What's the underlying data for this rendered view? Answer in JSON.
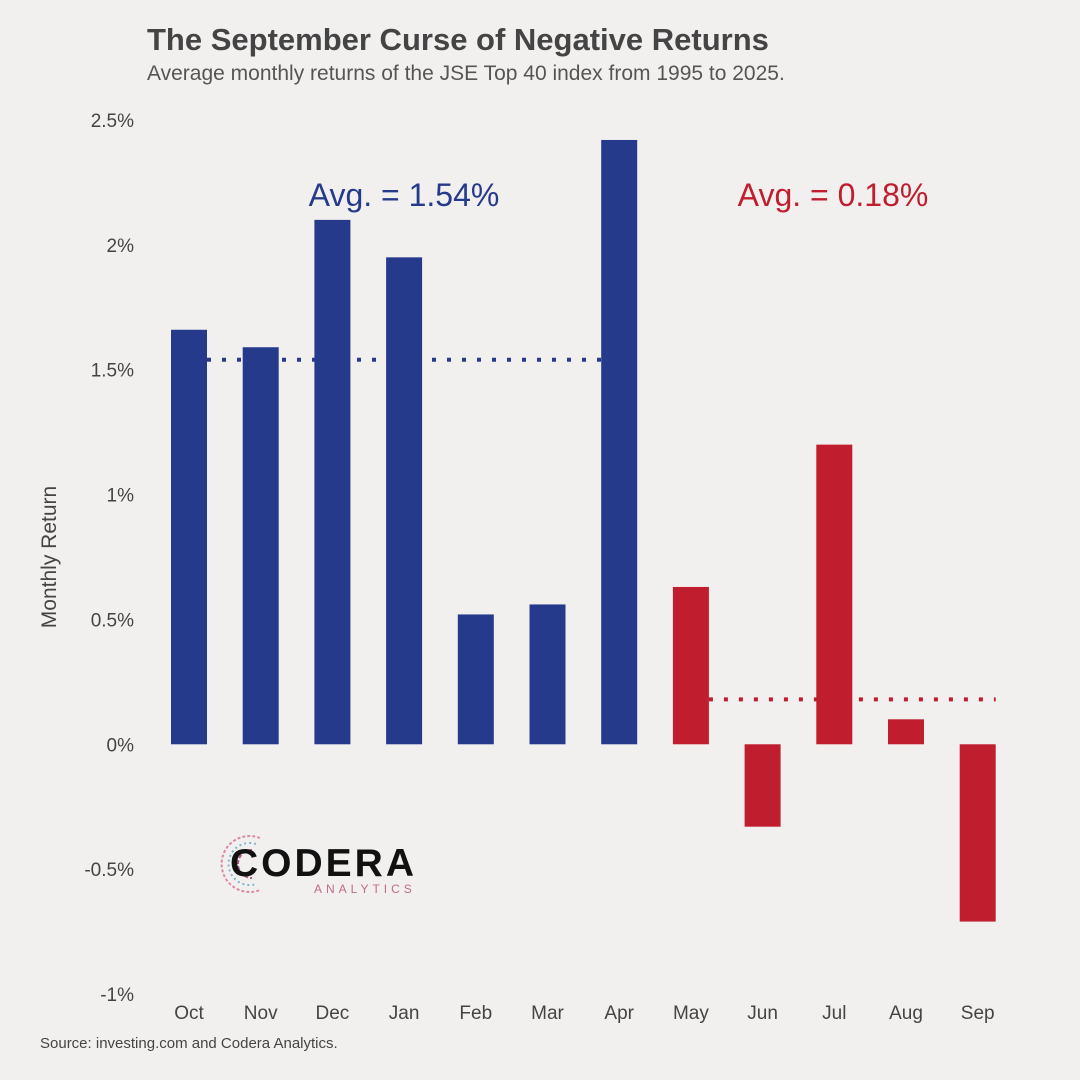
{
  "title": "The September Curse of Negative Returns",
  "subtitle": "Average monthly returns of the JSE Top 40 index from 1995 to 2025.",
  "source": "Source: investing.com and Codera Analytics.",
  "logo": {
    "name": "CODERA",
    "sub": "ANALYTICS"
  },
  "colors": {
    "blue": "#263a8b",
    "red": "#c01d2e",
    "text": "#444444",
    "background": "#f2f0ef"
  },
  "chart_data": {
    "type": "bar",
    "ylabel": "Monthly Return",
    "xlabel": "",
    "categories": [
      "Oct",
      "Nov",
      "Dec",
      "Jan",
      "Feb",
      "Mar",
      "Apr",
      "May",
      "Jun",
      "Jul",
      "Aug",
      "Sep"
    ],
    "values": [
      1.66,
      1.59,
      2.1,
      1.95,
      0.52,
      0.56,
      2.42,
      0.63,
      -0.33,
      1.2,
      0.1,
      -0.71
    ],
    "groups": [
      {
        "label": "Avg. = 1.54%",
        "average": 1.54,
        "from": 0,
        "to": 6,
        "color": "#263a8b"
      },
      {
        "label": "Avg. = 0.18%",
        "average": 0.18,
        "from": 7,
        "to": 11,
        "color": "#c01d2e"
      }
    ],
    "ylim": [
      -1,
      2.5
    ],
    "yticks": [
      2.5,
      2,
      1.5,
      1,
      0.5,
      0,
      -0.5,
      -1
    ],
    "ytick_labels": [
      "2.5%",
      "2%",
      "1.5%",
      "1%",
      "0.5%",
      "0%",
      "-0.5%",
      "-1%"
    ],
    "grid": false,
    "legend": "none"
  }
}
